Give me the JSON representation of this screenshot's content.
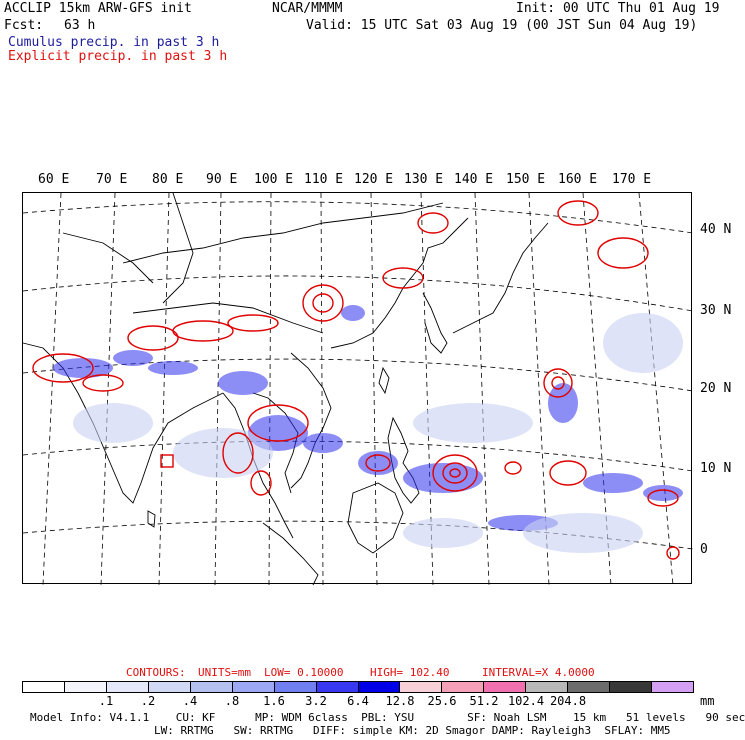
{
  "header": {
    "model_line": "ACCLIP 15km ARW-GFS init",
    "org": "NCAR/MMMM",
    "init": "Init: 00 UTC Thu 01 Aug 19",
    "fcst_label": "Fcst:",
    "fcst_value": "63 h",
    "valid": "Valid: 15 UTC Sat 03 Aug 19 (00 JST Sun 04 Aug 19)",
    "cumulus": "Cumulus precip. in past 3 h",
    "explicit": "Explicit precip. in past 3 h"
  },
  "map": {
    "lon_labels": [
      "60 E",
      "70 E",
      "80 E",
      "90 E",
      "100 E",
      "110 E",
      "120 E",
      "130 E",
      "140 E",
      "150 E",
      "160 E",
      "170 E"
    ],
    "lat_labels": [
      "40 N",
      "30 N",
      "20 N",
      "10 N",
      "0"
    ]
  },
  "contours": {
    "label": "CONTOURS:",
    "units": "UNITS=mm",
    "low": "LOW= 0.10000",
    "high": "HIGH= 102.40",
    "interval": "INTERVAL=X 4.0000"
  },
  "colorbar": {
    "colors": [
      "#ffffff",
      "#f4f4fc",
      "#e4e8f8",
      "#d0d8f4",
      "#b4c0f0",
      "#9ca8f4",
      "#7080f0",
      "#3838f0",
      "#0000e8",
      "#f8d0d8",
      "#f4a0b8",
      "#f070b0",
      "#b8b8b8",
      "#6c6c6c",
      "#383838",
      "#d4a0f4"
    ],
    "labels": [
      ".1",
      ".2",
      ".4",
      ".8",
      "1.6",
      "3.2",
      "6.4",
      "12.8",
      "25.6",
      "51.2",
      "102.4",
      "204.8"
    ],
    "units": "mm"
  },
  "footer": {
    "line1": "Model Info: V4.1.1    CU: KF      MP: WDM 6class  PBL: YSU        SF: Noah LSM    15 km   51 levels   90 sec",
    "line2": "LW: RRTMG   SW: RRTMG   DIFF: simple KM: 2D Smagor DAMP: Rayleigh3  SFLAY: MM5"
  },
  "colors": {
    "cumulus": "#2222ee",
    "explicit": "#e00000",
    "coast": "#000000"
  }
}
